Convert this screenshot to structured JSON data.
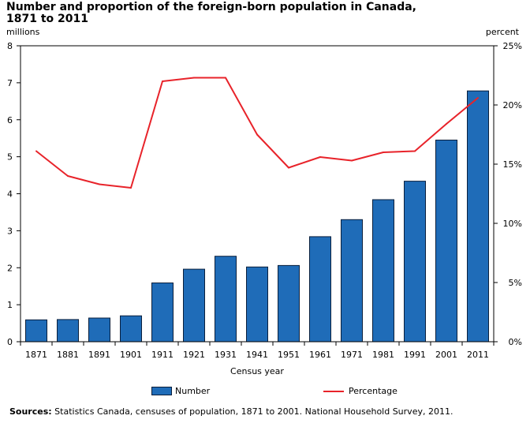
{
  "title_line1": "Number and proportion of the foreign-born population in Canada,",
  "title_line2": "1871 to 2011",
  "left_unit": "millions",
  "right_unit": "percent",
  "xlabel": "Census year",
  "legend": {
    "bar": "Number",
    "line": "Percentage"
  },
  "sources": {
    "label": "Sources:",
    "text": "Statistics Canada, censuses of population, 1871 to 2001. National Household Survey, 2011."
  },
  "colors": {
    "bar": "#1f6cb8",
    "bar_edge": "#0a1f3c",
    "line": "#e8232a"
  },
  "chart_data": {
    "type": "bar",
    "categories": [
      "1871",
      "1881",
      "1891",
      "1901",
      "1911",
      "1921",
      "1931",
      "1941",
      "1951",
      "1961",
      "1971",
      "1981",
      "1991",
      "2001",
      "2011"
    ],
    "series": [
      {
        "name": "Number",
        "type": "bar",
        "axis": "left",
        "values": [
          0.59,
          0.6,
          0.64,
          0.7,
          1.59,
          1.96,
          2.31,
          2.02,
          2.06,
          2.84,
          3.3,
          3.84,
          4.34,
          5.45,
          6.78
        ]
      },
      {
        "name": "Percentage",
        "type": "line",
        "axis": "right",
        "values": [
          16.1,
          14.0,
          13.3,
          13.0,
          22.0,
          22.3,
          22.3,
          17.5,
          14.7,
          15.6,
          15.3,
          16.0,
          16.1,
          18.4,
          20.6
        ]
      }
    ],
    "y_left": {
      "ylim": [
        0,
        8
      ],
      "ticks": [
        "0",
        "1",
        "2",
        "3",
        "4",
        "5",
        "6",
        "7",
        "8"
      ]
    },
    "y_right": {
      "ylim": [
        0,
        25
      ],
      "ticks": [
        "0%",
        "5%",
        "10%",
        "15%",
        "20%",
        "25%"
      ]
    },
    "grid": false,
    "legend_position": "bottom"
  }
}
